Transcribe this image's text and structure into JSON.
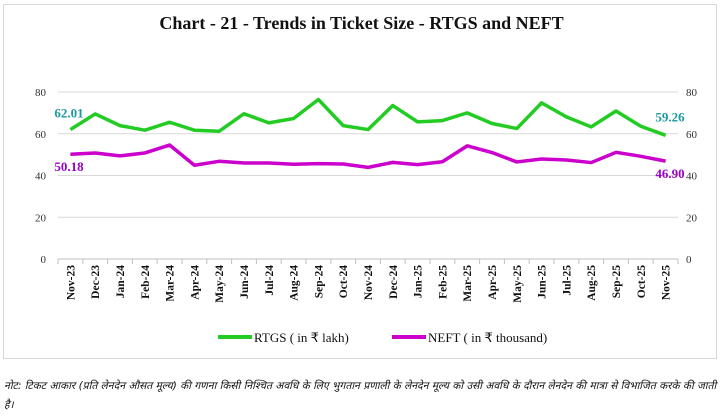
{
  "chart_data": {
    "type": "line",
    "title": "Chart - 21 - Trends in Ticket Size - RTGS and NEFT",
    "categories": [
      "Nov-23",
      "Dec-23",
      "Jan-24",
      "Feb-24",
      "Mar-24",
      "Apr-24",
      "May-24",
      "Jun-24",
      "Jul-24",
      "Aug-24",
      "Sep-24",
      "Oct-24",
      "Nov-24",
      "Dec-24",
      "Jan-25",
      "Feb-25",
      "Mar-25",
      "Apr-25",
      "May-25",
      "Jun-25",
      "Jul-25",
      "Aug-25",
      "Sep-25",
      "Oct-25",
      "Nov-25"
    ],
    "series": [
      {
        "name": "RTGS ( in ₹ lakh)",
        "color": "#22cc22",
        "axis": "left",
        "values": [
          62.01,
          69.5,
          63.9,
          61.7,
          65.5,
          61.7,
          61.2,
          69.6,
          65.2,
          67.3,
          76.4,
          63.9,
          62.0,
          73.5,
          65.7,
          66.3,
          70.0,
          64.9,
          62.5,
          74.8,
          68.1,
          63.3,
          70.9,
          63.6,
          59.26
        ],
        "labels": {
          "first": "62.01",
          "last": "59.26"
        },
        "label_color": "#1a9aa0"
      },
      {
        "name": "NEFT ( in ₹ thousand)",
        "color": "#cc00cc",
        "axis": "right",
        "values": [
          50.18,
          50.8,
          49.4,
          50.8,
          54.6,
          44.9,
          46.8,
          46.0,
          46.0,
          45.4,
          45.7,
          45.5,
          43.9,
          46.3,
          45.2,
          46.6,
          54.2,
          51.0,
          46.5,
          47.9,
          47.4,
          46.2,
          51.1,
          49.2,
          46.9
        ],
        "labels": {
          "first": "50.18",
          "last": "46.90"
        },
        "label_color": "#9a00c8"
      }
    ],
    "ylim": [
      0,
      80
    ],
    "y_ticks": [
      "0",
      "20",
      "40",
      "60",
      "80"
    ],
    "y2_ticks": [
      "0",
      "20",
      "40",
      "60",
      "80"
    ],
    "grid": true,
    "legend": "bottom"
  },
  "note": "नोट: टिकट आकार (प्रति लेनदेन औसत मूल्य) की गणना किसी निश्चित अवधि के लिए भुगतान प्रणाली के लेनदेन मूल्य को उसी अवधि के दौरान लेनदेन की मात्रा से विभाजित करके की जाती है।"
}
